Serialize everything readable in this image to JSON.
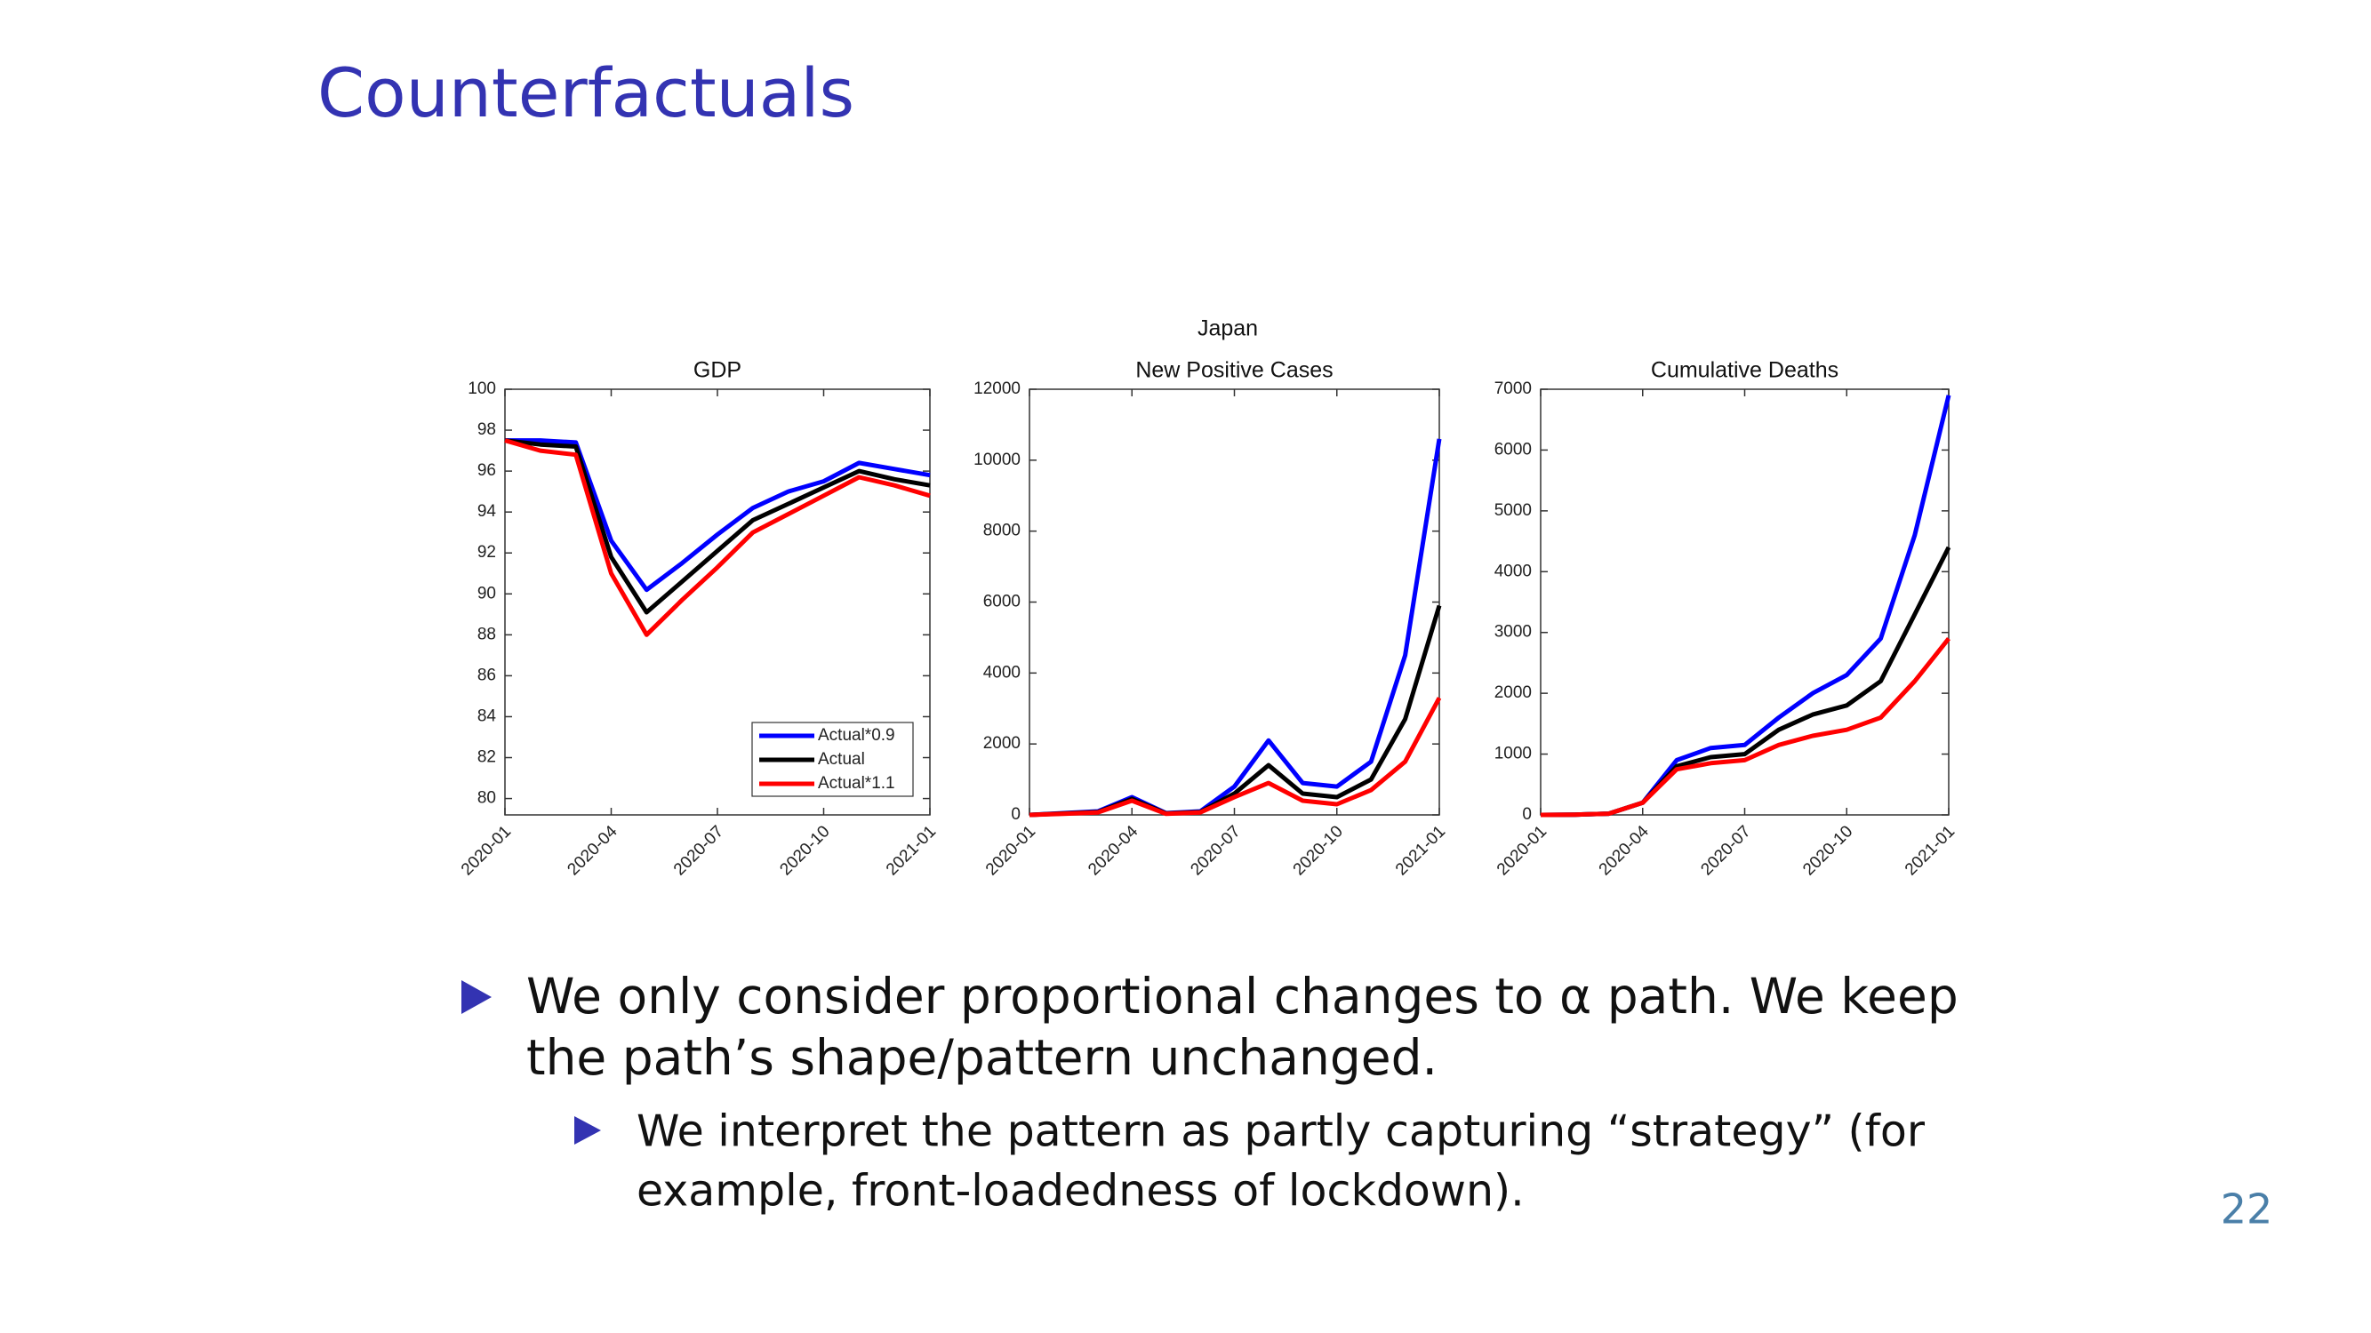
{
  "slide": {
    "title": "Counterfactuals",
    "figure_title": "Japan",
    "bullets": [
      {
        "lines": [
          "We only consider proportional changes to α path. We keep",
          "the path’s shape/pattern unchanged."
        ],
        "sub": [
          {
            "lines": [
              "We interpret the pattern as partly capturing “strategy” (for",
              "example, front-loadedness of lockdown)."
            ]
          }
        ]
      }
    ],
    "page_number": "22"
  },
  "chart_data": [
    {
      "type": "line",
      "title": "GDP",
      "x": [
        "2020-01",
        "2020-02",
        "2020-03",
        "2020-04",
        "2020-05",
        "2020-06",
        "2020-07",
        "2020-08",
        "2020-09",
        "2020-10",
        "2020-11",
        "2020-12",
        "2021-01"
      ],
      "xlim": [
        "2020-01",
        "2021-01"
      ],
      "xticks": [
        "2020-01",
        "2020-04",
        "2020-07",
        "2020-10",
        "2021-01"
      ],
      "ylim": [
        79.2,
        100
      ],
      "yticks": [
        80,
        82,
        84,
        86,
        88,
        90,
        92,
        94,
        96,
        98,
        100
      ],
      "legend": "lower right",
      "series": [
        {
          "name": "Actual*0.9",
          "color": "#0000ff",
          "values": [
            97.5,
            97.5,
            97.4,
            92.6,
            90.2,
            91.5,
            92.9,
            94.2,
            95.0,
            95.5,
            96.4,
            96.1,
            95.8
          ]
        },
        {
          "name": "Actual",
          "color": "#000000",
          "values": [
            97.5,
            97.3,
            97.2,
            91.8,
            89.1,
            90.6,
            92.1,
            93.6,
            94.4,
            95.2,
            96.0,
            95.6,
            95.3
          ]
        },
        {
          "name": "Actual*1.1",
          "color": "#ff0000",
          "values": [
            97.5,
            97.0,
            96.8,
            91.0,
            88.0,
            89.7,
            91.3,
            93.0,
            93.9,
            94.8,
            95.7,
            95.3,
            94.8
          ]
        }
      ]
    },
    {
      "type": "line",
      "title": "New Positive Cases",
      "x": [
        "2020-01",
        "2020-02",
        "2020-03",
        "2020-04",
        "2020-05",
        "2020-06",
        "2020-07",
        "2020-08",
        "2020-09",
        "2020-10",
        "2020-11",
        "2020-12",
        "2021-01"
      ],
      "xlim": [
        "2020-01",
        "2021-01"
      ],
      "xticks": [
        "2020-01",
        "2020-04",
        "2020-07",
        "2020-10",
        "2021-01"
      ],
      "ylim": [
        0,
        12000
      ],
      "yticks": [
        0,
        2000,
        4000,
        6000,
        8000,
        10000,
        12000
      ],
      "series": [
        {
          "name": "Actual*0.9",
          "color": "#0000ff",
          "values": [
            0,
            50,
            100,
            500,
            50,
            100,
            800,
            2100,
            900,
            800,
            1500,
            4500,
            10600
          ]
        },
        {
          "name": "Actual",
          "color": "#000000",
          "values": [
            0,
            40,
            80,
            450,
            40,
            80,
            600,
            1400,
            600,
            500,
            1000,
            2700,
            5900
          ]
        },
        {
          "name": "Actual*1.1",
          "color": "#ff0000",
          "values": [
            0,
            30,
            70,
            400,
            30,
            70,
            500,
            900,
            400,
            300,
            700,
            1500,
            3300
          ]
        }
      ]
    },
    {
      "type": "line",
      "title": "Cumulative Deaths",
      "x": [
        "2020-01",
        "2020-02",
        "2020-03",
        "2020-04",
        "2020-05",
        "2020-06",
        "2020-07",
        "2020-08",
        "2020-09",
        "2020-10",
        "2020-11",
        "2020-12",
        "2021-01"
      ],
      "xlim": [
        "2020-01",
        "2021-01"
      ],
      "xticks": [
        "2020-01",
        "2020-04",
        "2020-07",
        "2020-10",
        "2021-01"
      ],
      "ylim": [
        0,
        7000
      ],
      "yticks": [
        0,
        1000,
        2000,
        3000,
        4000,
        5000,
        6000,
        7000
      ],
      "series": [
        {
          "name": "Actual*0.9",
          "color": "#0000ff",
          "values": [
            0,
            5,
            20,
            200,
            900,
            1100,
            1150,
            1600,
            2000,
            2300,
            2900,
            4600,
            6900
          ]
        },
        {
          "name": "Actual",
          "color": "#000000",
          "values": [
            0,
            5,
            20,
            200,
            800,
            950,
            1000,
            1400,
            1650,
            1800,
            2200,
            3300,
            4400
          ]
        },
        {
          "name": "Actual*1.1",
          "color": "#ff0000",
          "values": [
            0,
            5,
            20,
            200,
            750,
            850,
            900,
            1150,
            1300,
            1400,
            1600,
            2200,
            2900
          ]
        }
      ]
    }
  ]
}
